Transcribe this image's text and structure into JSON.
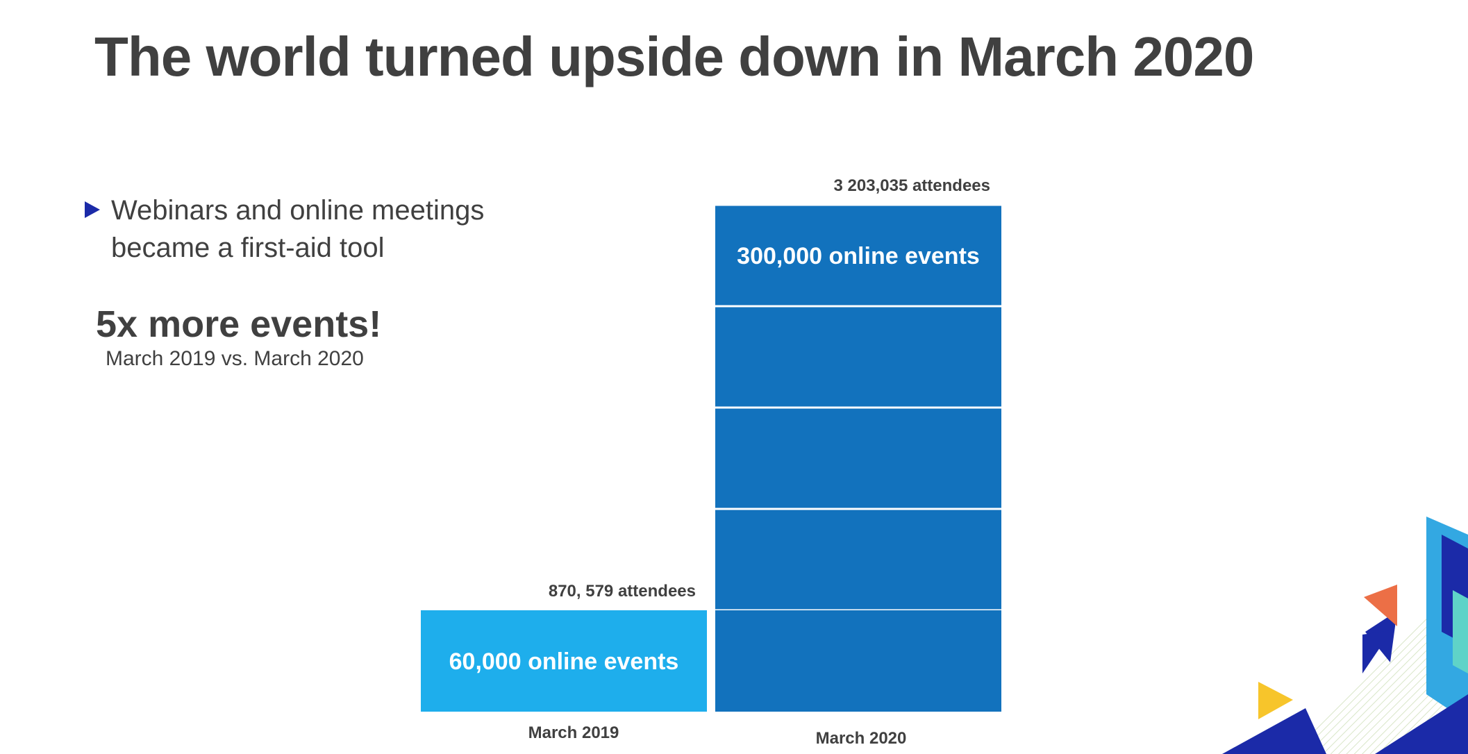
{
  "slide": {
    "title": "The world turned upside down in March 2020",
    "bullet": "Webinars and online meetings became a first-aid tool",
    "highlight": "5x more events!",
    "highlight_sub": "March 2019 vs. March 2020"
  },
  "chart_data": {
    "type": "bar",
    "categories": [
      "March 2019",
      "March 2020"
    ],
    "values": [
      60000,
      300000
    ],
    "unit_size": 60000,
    "bar_labels": [
      "60,000 online events",
      "300,000 online events"
    ],
    "attendee_labels": [
      "870, 579 attendees",
      "3 203,035 attendees"
    ],
    "title": "",
    "xlabel": "",
    "ylabel": "",
    "ylim": [
      0,
      300000
    ],
    "grid": false,
    "legend": "none",
    "colors": {
      "march_2019": "#1eaeec",
      "march_2020": "#1272bd",
      "separator": "#ffffff"
    }
  },
  "decoration": {
    "colors": {
      "navy": "#1b2aa8",
      "orange": "#ec6f46",
      "yellow": "#f7c52b",
      "light_blue": "#33a8e2",
      "teal": "#5fd3c8"
    }
  }
}
